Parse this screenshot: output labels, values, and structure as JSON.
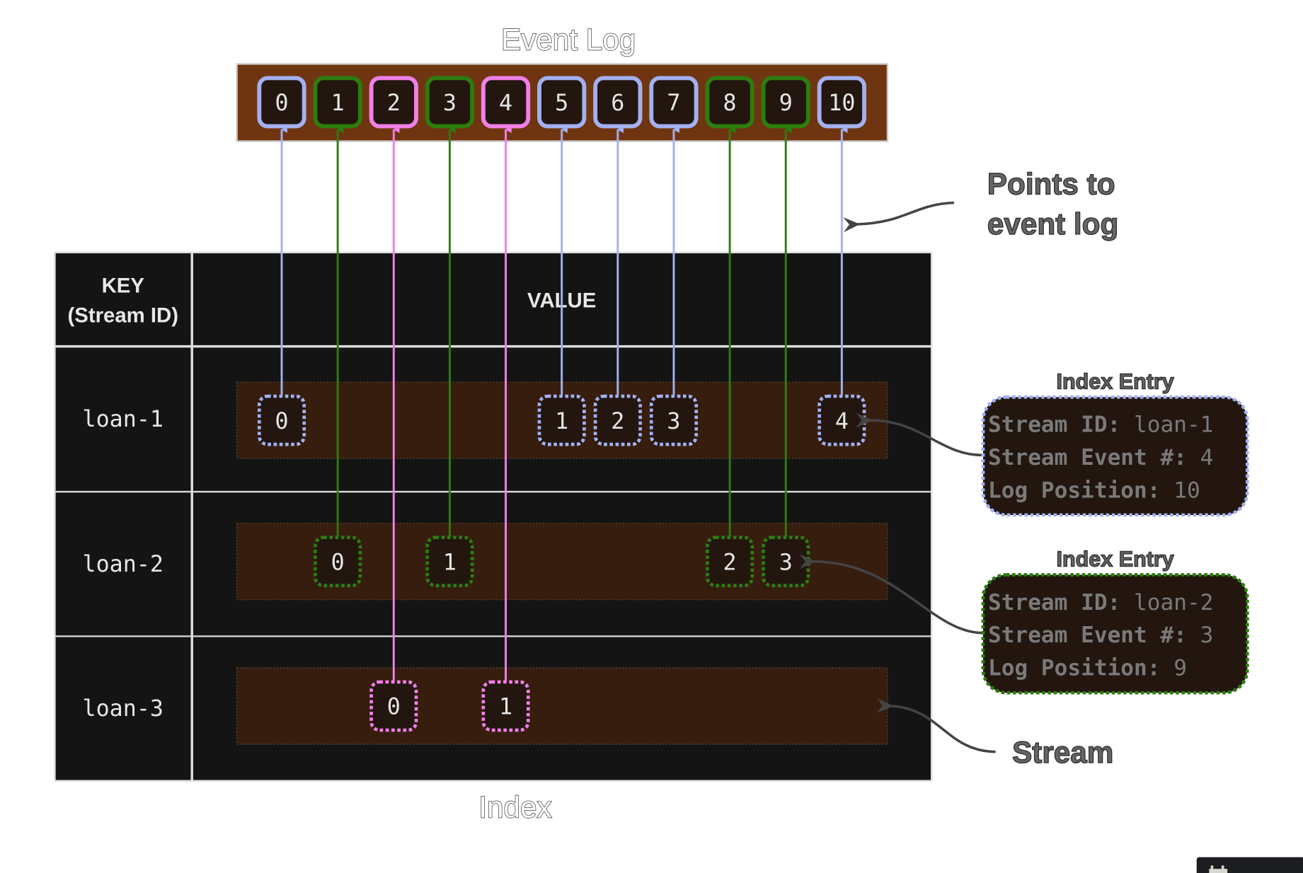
{
  "titles": {
    "event_log": "Event Log",
    "index": "Index",
    "points_to_line1": "Points to",
    "points_to_line2": "event log",
    "stream": "Stream"
  },
  "colors": {
    "log_bg": "#6f3510",
    "cell_bg": "#22160f",
    "stream_bg": "#361d0e",
    "table_bg": "#141414",
    "loan-1": "#a3b0f0",
    "loan-2": "#2e7d0e",
    "loan-3": "#f080e8"
  },
  "event_log": [
    {
      "pos": "0",
      "stream": "loan-1"
    },
    {
      "pos": "1",
      "stream": "loan-2"
    },
    {
      "pos": "2",
      "stream": "loan-3"
    },
    {
      "pos": "3",
      "stream": "loan-2"
    },
    {
      "pos": "4",
      "stream": "loan-3"
    },
    {
      "pos": "5",
      "stream": "loan-1"
    },
    {
      "pos": "6",
      "stream": "loan-1"
    },
    {
      "pos": "7",
      "stream": "loan-1"
    },
    {
      "pos": "8",
      "stream": "loan-2"
    },
    {
      "pos": "9",
      "stream": "loan-2"
    },
    {
      "pos": "10",
      "stream": "loan-1"
    }
  ],
  "table": {
    "key_header_line1": "KEY",
    "key_header_line2": "(Stream ID)",
    "value_header": "VALUE",
    "rows": [
      {
        "key": "loan-1",
        "events": [
          {
            "num": "0",
            "log": 0
          },
          {
            "num": "1",
            "log": 5
          },
          {
            "num": "2",
            "log": 6
          },
          {
            "num": "3",
            "log": 7
          },
          {
            "num": "4",
            "log": 10
          }
        ]
      },
      {
        "key": "loan-2",
        "events": [
          {
            "num": "0",
            "log": 1
          },
          {
            "num": "1",
            "log": 3
          },
          {
            "num": "2",
            "log": 8
          },
          {
            "num": "3",
            "log": 9
          }
        ]
      },
      {
        "key": "loan-3",
        "events": [
          {
            "num": "0",
            "log": 2
          },
          {
            "num": "1",
            "log": 4
          }
        ]
      }
    ]
  },
  "index_entries": [
    {
      "title": "Index Entry",
      "stream": "loan-1",
      "lines": [
        {
          "label": "Stream ID:",
          "value": "loan-1"
        },
        {
          "label": "Stream Event #:",
          "value": "4"
        },
        {
          "label": "Log Position:",
          "value": "10"
        }
      ]
    },
    {
      "title": "Index Entry",
      "stream": "loan-2",
      "lines": [
        {
          "label": "Stream ID:",
          "value": "loan-2"
        },
        {
          "label": "Stream Event #:",
          "value": "3"
        },
        {
          "label": "Log Position:",
          "value": "9"
        }
      ]
    }
  ],
  "corner_widget": {
    "icon": "calendar-icon"
  }
}
